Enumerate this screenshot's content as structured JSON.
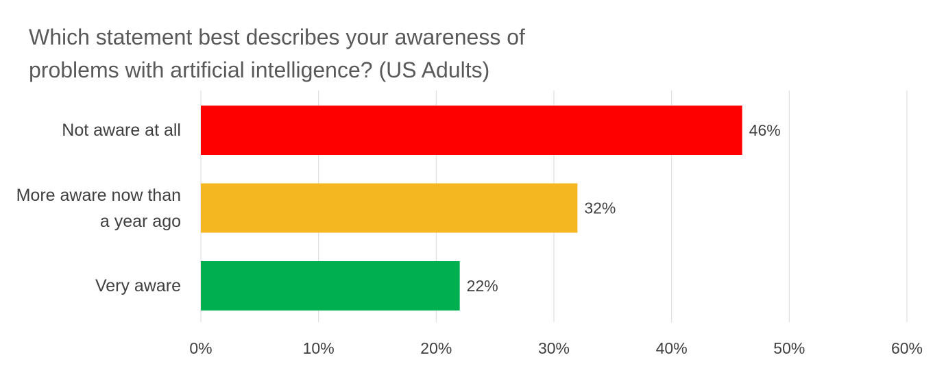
{
  "chart_data": {
    "type": "bar",
    "orientation": "horizontal",
    "title": "Which statement best describes your awareness of problems with artificial intelligence? (US Adults)",
    "categories": [
      "Not aware at all",
      "More aware now than a year ago",
      "Very aware"
    ],
    "values": [
      46,
      32,
      22
    ],
    "value_labels": [
      "46%",
      "32%",
      "22%"
    ],
    "colors": [
      "#ff0000",
      "#f4b722",
      "#00b050"
    ],
    "xlim": [
      0,
      60
    ],
    "xticks": [
      {
        "value": 0,
        "label": "0%"
      },
      {
        "value": 10,
        "label": "10%"
      },
      {
        "value": 20,
        "label": "20%"
      },
      {
        "value": 30,
        "label": "30%"
      },
      {
        "value": 40,
        "label": "40%"
      },
      {
        "value": 50,
        "label": "50%"
      },
      {
        "value": 60,
        "label": "60%"
      }
    ],
    "grid": true
  }
}
